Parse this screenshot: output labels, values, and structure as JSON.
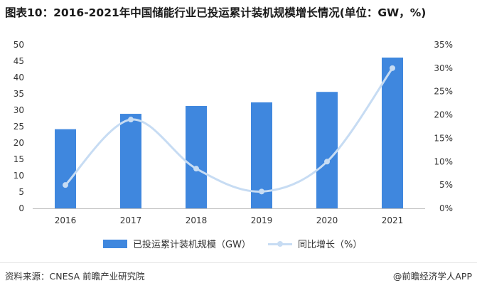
{
  "title": "图表10：2016-2021年中国储能行业已投运累计装机规模增长情况(单位：GW，%)",
  "source": "资料来源：CNESA 前瞻产业研究院",
  "brand": "@前瞻经济学人APP",
  "legend": {
    "bar_label": "已投运累计装机规模（GW）",
    "line_label": "同比增长（%）"
  },
  "colors": {
    "bar": "#3f87de",
    "line": "#c7dcf3",
    "axis": "#bfbfbf"
  },
  "chart_data": {
    "type": "bar",
    "categories": [
      "2016",
      "2017",
      "2018",
      "2019",
      "2020",
      "2021"
    ],
    "series": [
      {
        "name": "已投运累计装机规模（GW）",
        "type": "bar",
        "axis": "left",
        "values": [
          24.2,
          28.9,
          31.3,
          32.4,
          35.6,
          46.1
        ]
      },
      {
        "name": "同比增长（%）",
        "type": "line",
        "axis": "right",
        "smooth": true,
        "values": [
          5.0,
          19.0,
          8.5,
          3.6,
          10.0,
          30.0
        ]
      }
    ],
    "y_left": {
      "min": 0,
      "max": 50,
      "step": 5,
      "ticks": [
        "0",
        "5",
        "10",
        "15",
        "20",
        "25",
        "30",
        "35",
        "40",
        "45",
        "50"
      ]
    },
    "y_right": {
      "min": 0,
      "max": 35,
      "step": 5,
      "ticks": [
        "0%",
        "5%",
        "10%",
        "15%",
        "20%",
        "25%",
        "30%",
        "35%"
      ]
    },
    "legend_position": "bottom",
    "grid": false
  }
}
